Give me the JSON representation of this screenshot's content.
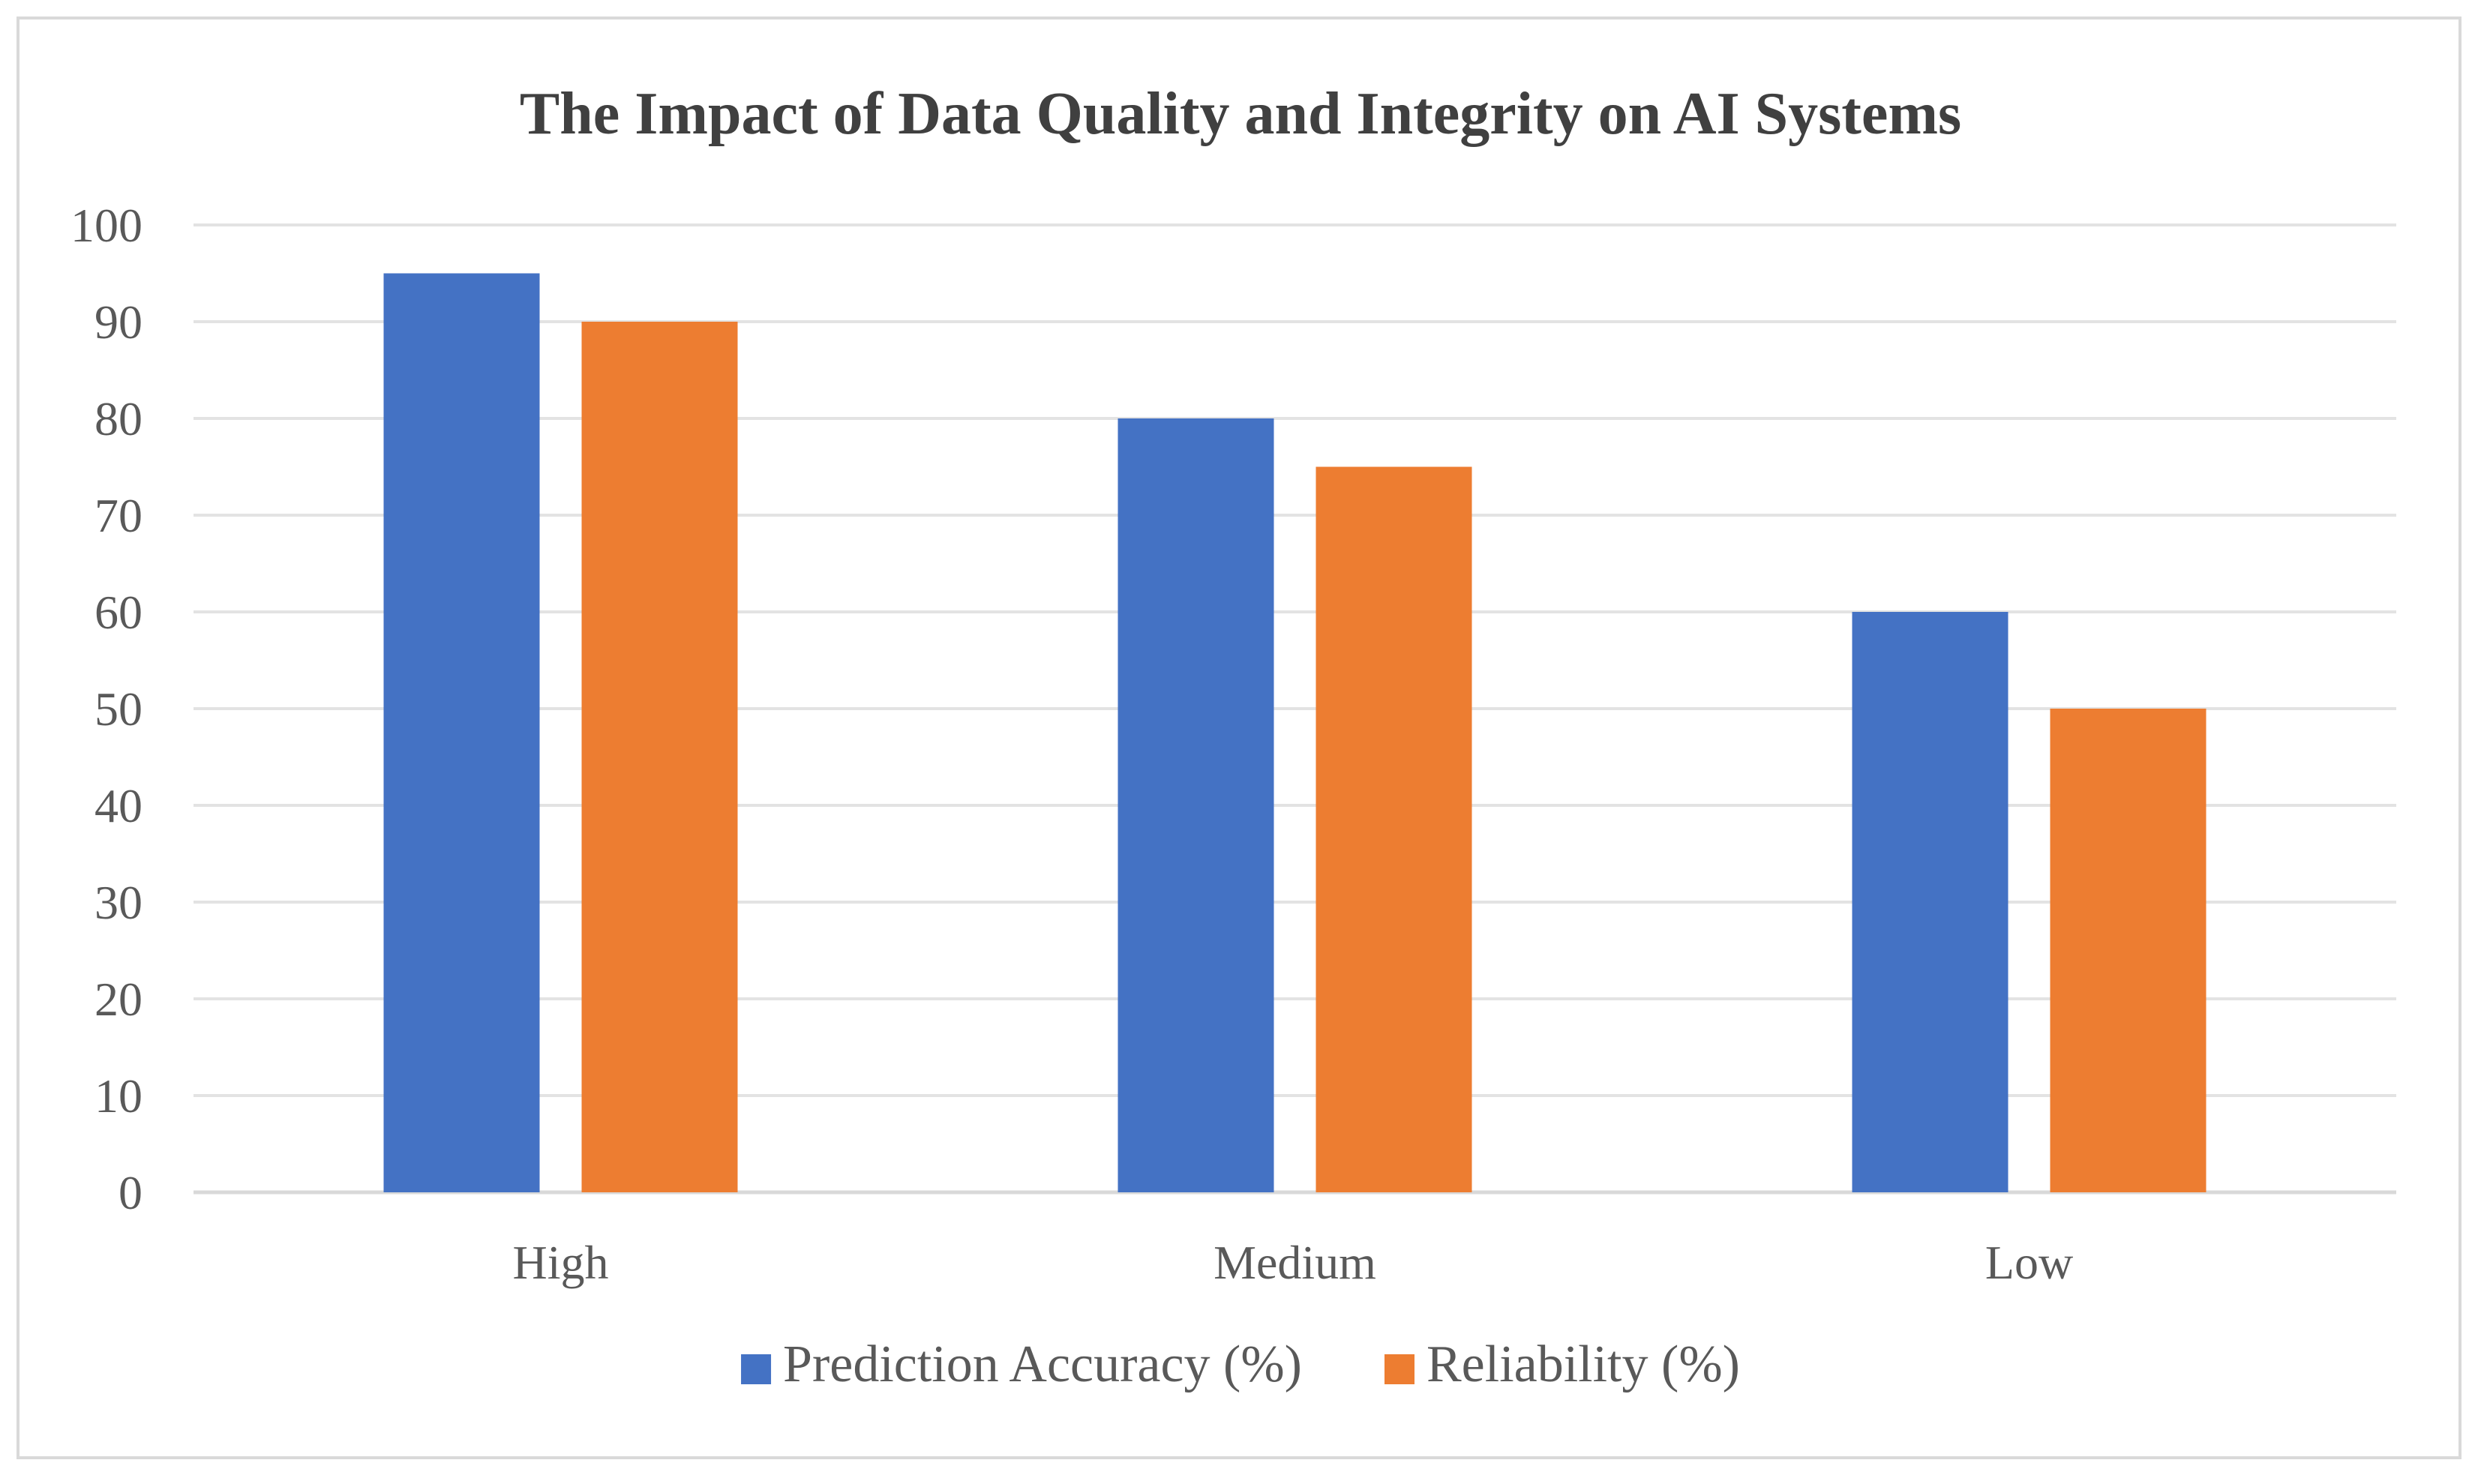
{
  "chart_data": {
    "type": "bar",
    "title": "The Impact of Data Quality and Integrity on AI Systems",
    "categories": [
      "High",
      "Medium",
      "Low"
    ],
    "series": [
      {
        "name": "Prediction Accuracy (%)",
        "values": [
          95,
          80,
          60
        ],
        "color": "#4472c4"
      },
      {
        "name": "Reliability (%)",
        "values": [
          90,
          75,
          50
        ],
        "color": "#ed7d31"
      }
    ],
    "ylim": [
      0,
      100
    ],
    "yticks": [
      0,
      10,
      20,
      30,
      40,
      50,
      60,
      70,
      80,
      90,
      100
    ],
    "grid": true,
    "legend_position": "bottom"
  }
}
